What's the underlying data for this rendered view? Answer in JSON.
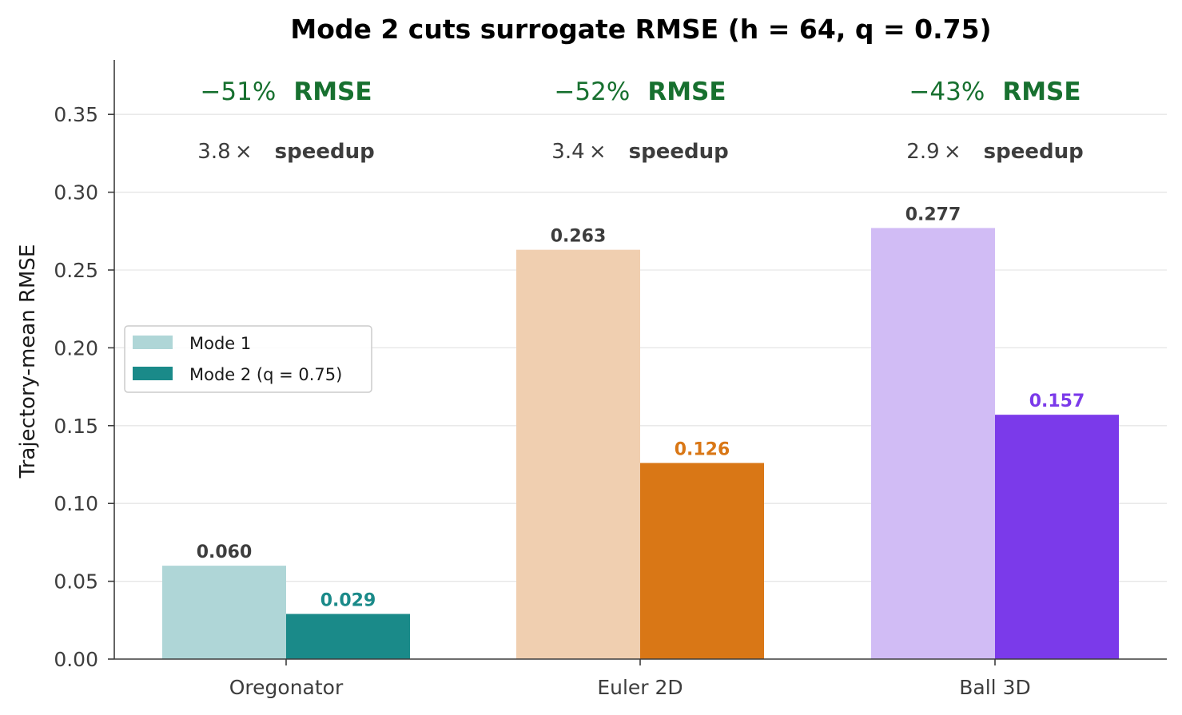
{
  "chart_data": {
    "type": "bar",
    "title": "Mode 2 cuts surrogate RMSE  (h = 64, q = 0.75)",
    "xlabel": "",
    "ylabel": "Trajectory-mean RMSE",
    "categories": [
      "Oregonator",
      "Euler 2D",
      "Ball 3D"
    ],
    "series": [
      {
        "name": "Mode 1",
        "values": [
          0.06,
          0.263,
          0.277
        ]
      },
      {
        "name": "Mode 2 (q = 0.75)",
        "values": [
          0.029,
          0.126,
          0.157
        ]
      }
    ],
    "value_labels": {
      "mode1": [
        "0.060",
        "0.263",
        "0.277"
      ],
      "mode2": [
        "0.029",
        "0.126",
        "0.157"
      ]
    },
    "ylim": [
      0,
      0.385
    ],
    "yticks": [
      0.0,
      0.05,
      0.1,
      0.15,
      0.2,
      0.25,
      0.3,
      0.35
    ],
    "ytick_labels": [
      "0.00",
      "0.05",
      "0.10",
      "0.15",
      "0.20",
      "0.25",
      "0.30",
      "0.35"
    ],
    "grid": "horizontal",
    "legend_position": "center-left",
    "annotations": [
      {
        "rmse_change": "−51%",
        "rmse_word": "RMSE",
        "speedup": "3.8 ×",
        "speedup_word": "speedup"
      },
      {
        "rmse_change": "−52%",
        "rmse_word": "RMSE",
        "speedup": "3.4 ×",
        "speedup_word": "speedup"
      },
      {
        "rmse_change": "−43%",
        "rmse_word": "RMSE",
        "speedup": "2.9 ×",
        "speedup_word": "speedup"
      }
    ],
    "colors": {
      "mode1": [
        "#afd6d7",
        "#f0cfb0",
        "#d1bcf5"
      ],
      "mode2": [
        "#1a8a89",
        "#d97716",
        "#7b3aea"
      ],
      "mode1_label": "#3d3d3d",
      "rmse_annotation": "#17702f",
      "speedup_annotation": "#3d3d3d",
      "legend_mode1": "#afd6d7",
      "legend_mode2": "#1a8a89"
    }
  }
}
